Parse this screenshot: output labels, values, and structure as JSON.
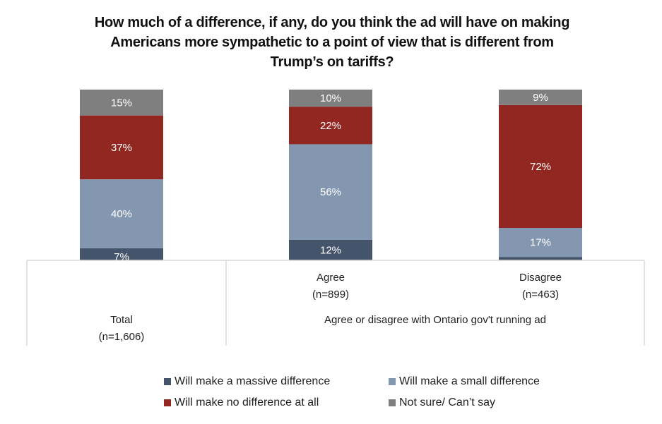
{
  "chart_data": {
    "type": "bar",
    "stacked": true,
    "title": "How much of a difference, if any, do you think the ad will have on making Americans more sympathetic to a point of view that is different from Trump’s on tariffs?",
    "title_lines": [
      "How much of a difference, if any, do you think the ad will have on making",
      "Americans more sympathetic to a point of view that is different from",
      "Trump’s on tariffs?"
    ],
    "categories": [
      {
        "label": "Total",
        "n": "(n=1,606)"
      },
      {
        "label": "Agree",
        "n": "(n=899)"
      },
      {
        "label": "Disagree",
        "n": "(n=463)"
      }
    ],
    "group_label": "Agree or disagree with Ontario gov't running ad",
    "series": [
      {
        "name": "Will make a massive difference",
        "color": "#44546a",
        "values": [
          7,
          12,
          2
        ],
        "labels": [
          "7%",
          "12%",
          ""
        ]
      },
      {
        "name": "Will make a small difference",
        "color": "#8497b0",
        "values": [
          40,
          56,
          17
        ],
        "labels": [
          "40%",
          "56%",
          "17%"
        ]
      },
      {
        "name": "Will make no difference at all",
        "color": "#922721",
        "values": [
          37,
          22,
          72
        ],
        "labels": [
          "37%",
          "22%",
          "72%"
        ]
      },
      {
        "name": "Not sure/ Can’t say",
        "color": "#7f7f7f",
        "values": [
          15,
          10,
          9
        ],
        "labels": [
          "15%",
          "10%",
          "9%"
        ]
      }
    ],
    "ylim": [
      0,
      100
    ],
    "legend_position": "bottom",
    "grid": false
  }
}
